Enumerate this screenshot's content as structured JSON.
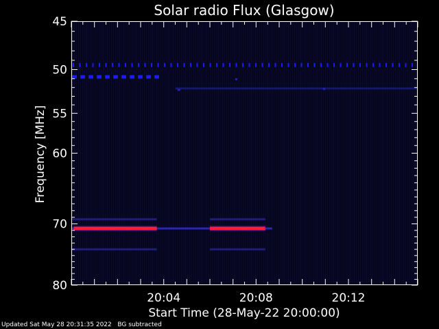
{
  "chart_data": {
    "type": "heatmap",
    "title": "Solar radio Flux (Glasgow)",
    "xlabel": "Start Time (28-May-22 20:00:00)",
    "ylabel": "Frequency [MHz]",
    "x_range_minutes": [
      0,
      15
    ],
    "x_ticks": [
      {
        "minute": 4,
        "label": "20:04"
      },
      {
        "minute": 8,
        "label": "20:08"
      },
      {
        "minute": 12,
        "label": "20:12"
      }
    ],
    "y_range_mhz": [
      45,
      80
    ],
    "y_scale": "log",
    "y_inverted": true,
    "y_ticks": [
      45,
      50,
      55,
      60,
      70,
      80
    ],
    "background_color": "#06061f",
    "features": [
      {
        "kind": "dotted-band",
        "freq_mhz": 49.5,
        "start_min": 0.0,
        "end_min": 15.0,
        "color": "#1a1aff"
      },
      {
        "kind": "dashed-band",
        "freq_mhz": 50.8,
        "start_min": 0.0,
        "end_min": 3.7,
        "color": "#1a1aff"
      },
      {
        "kind": "line",
        "freq_mhz": 52.1,
        "start_min": 4.5,
        "end_min": 15.0,
        "color": "#16166a"
      },
      {
        "kind": "line",
        "freq_mhz": 69.3,
        "start_min": 0.0,
        "end_min": 3.7,
        "color": "#1d1d7a"
      },
      {
        "kind": "line",
        "freq_mhz": 69.3,
        "start_min": 6.0,
        "end_min": 8.4,
        "color": "#1d1d7a"
      },
      {
        "kind": "line",
        "freq_mhz": 70.7,
        "start_min": 0.0,
        "end_min": 8.7,
        "color": "#2a2aa0"
      },
      {
        "kind": "strong-band",
        "freq_mhz": 70.7,
        "start_min": 0.1,
        "end_min": 3.7,
        "color": "#ff1a3a"
      },
      {
        "kind": "strong-band",
        "freq_mhz": 70.7,
        "start_min": 6.0,
        "end_min": 8.4,
        "color": "#ff1a3a"
      },
      {
        "kind": "line",
        "freq_mhz": 74.0,
        "start_min": 0.0,
        "end_min": 3.7,
        "color": "#1d1d7a"
      },
      {
        "kind": "line",
        "freq_mhz": 74.0,
        "start_min": 6.0,
        "end_min": 8.4,
        "color": "#1d1d7a"
      }
    ]
  },
  "footer": {
    "updated": "Updated Sat May 28 20:31:35 2022",
    "note": "BG subtracted"
  }
}
